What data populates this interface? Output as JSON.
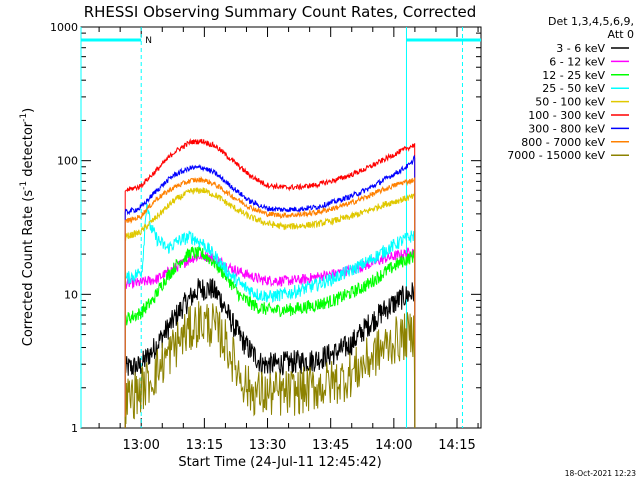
{
  "chart_data": {
    "type": "line",
    "title": "RHESSI Observing Summary Count Rates, Corrected",
    "xlabel": "Start Time (24-Jul-11 12:45:42)",
    "ylabel_main": "Corrected Count Rate (s",
    "ylabel_sup1": "-1",
    "ylabel_mid": " detector",
    "ylabel_sup2": "-1",
    "ylabel_end": ")",
    "yscale": "log",
    "ylim": [
      1,
      1000
    ],
    "xlim_minutes": [
      0,
      95
    ],
    "xtick_labels": [
      {
        "label": "13:00",
        "minutes": 14.3
      },
      {
        "label": "13:15",
        "minutes": 29.3
      },
      {
        "label": "13:30",
        "minutes": 44.3
      },
      {
        "label": "13:45",
        "minutes": 59.3
      },
      {
        "label": "14:00",
        "minutes": 74.3
      },
      {
        "label": "14:15",
        "minutes": 89.3
      }
    ],
    "ytick_labels": [
      {
        "label": "1",
        "value": 1
      },
      {
        "label": "10",
        "value": 10
      },
      {
        "label": "100",
        "value": 100
      },
      {
        "label": "1000",
        "value": 1000
      }
    ],
    "legend_header": [
      "Det 1,3,4,5,6,9,",
      "Att 0"
    ],
    "legend_position": "top-right-outside",
    "night_marker_label": "N",
    "footer_date": "18-Oct-2021 12:23",
    "markers": {
      "saa_bars": [
        {
          "start": 0,
          "end": 14.3
        },
        {
          "start": 77.3,
          "end": 95
        }
      ],
      "saa_level": 800,
      "night_lines": [
        14.3,
        90.6
      ],
      "data_edges": [
        0,
        77.3
      ],
      "color": "#00ffff"
    },
    "data_start": 10.5,
    "data_end": 79.3,
    "series": [
      {
        "name": "3 - 6 keV",
        "color": "#000000",
        "noise": 0.09,
        "step": 0.5,
        "points": [
          [
            10.5,
            2.8
          ],
          [
            14,
            2.9
          ],
          [
            17,
            3.8
          ],
          [
            20,
            5.2
          ],
          [
            24,
            8
          ],
          [
            28,
            11
          ],
          [
            31,
            11
          ],
          [
            33,
            9.5
          ],
          [
            36,
            6
          ],
          [
            39,
            4.2
          ],
          [
            43,
            3
          ],
          [
            46,
            3
          ],
          [
            50,
            3.1
          ],
          [
            55,
            3.2
          ],
          [
            60,
            3.6
          ],
          [
            64,
            4.2
          ],
          [
            68,
            5.8
          ],
          [
            72,
            7.6
          ],
          [
            76,
            9.3
          ],
          [
            79.3,
            10.5
          ]
        ]
      },
      {
        "name": "6 - 12 keV",
        "color": "#ff00ff",
        "noise": 0.04,
        "step": 0.5,
        "points": [
          [
            10.5,
            12
          ],
          [
            14,
            12.2
          ],
          [
            18,
            13
          ],
          [
            22,
            15.5
          ],
          [
            26,
            18.5
          ],
          [
            29,
            19.5
          ],
          [
            32,
            18.5
          ],
          [
            35,
            16
          ],
          [
            39,
            14.2
          ],
          [
            43,
            12.8
          ],
          [
            48,
            12.6
          ],
          [
            52,
            12.8
          ],
          [
            56,
            13.5
          ],
          [
            60,
            14.2
          ],
          [
            64,
            15.2
          ],
          [
            68,
            16.6
          ],
          [
            72,
            18.5
          ],
          [
            76,
            19.8
          ],
          [
            79.3,
            21
          ]
        ]
      },
      {
        "name": "12 - 25 keV",
        "color": "#00ff00",
        "noise": 0.05,
        "step": 0.5,
        "points": [
          [
            10.5,
            6.5
          ],
          [
            14,
            7.2
          ],
          [
            17,
            9
          ],
          [
            20,
            13
          ],
          [
            23,
            17
          ],
          [
            26,
            20.5
          ],
          [
            29,
            20
          ],
          [
            32,
            17
          ],
          [
            35,
            13
          ],
          [
            38,
            9.5
          ],
          [
            42,
            8
          ],
          [
            45,
            7.6
          ],
          [
            50,
            7.7
          ],
          [
            55,
            8.2
          ],
          [
            60,
            9
          ],
          [
            64,
            10.2
          ],
          [
            68,
            11.8
          ],
          [
            72,
            14.5
          ],
          [
            76,
            17.5
          ],
          [
            79.3,
            19.5
          ]
        ]
      },
      {
        "name": "25 - 50 keV",
        "color": "#00ffff",
        "noise": 0.05,
        "step": 0.5,
        "points": [
          [
            10.5,
            13
          ],
          [
            13,
            14
          ],
          [
            14.5,
            15
          ],
          [
            15.6,
            50
          ],
          [
            16.5,
            32
          ],
          [
            18,
            26
          ],
          [
            20.5,
            22
          ],
          [
            23,
            25
          ],
          [
            26,
            27
          ],
          [
            29,
            24
          ],
          [
            32,
            19
          ],
          [
            35,
            14.5
          ],
          [
            38,
            11.8
          ],
          [
            42,
            10
          ],
          [
            45,
            9.6
          ],
          [
            50,
            10.3
          ],
          [
            55,
            11.5
          ],
          [
            60,
            13.2
          ],
          [
            64,
            15
          ],
          [
            68,
            17.5
          ],
          [
            72,
            21
          ],
          [
            76,
            25
          ],
          [
            79.3,
            28
          ]
        ]
      },
      {
        "name": "50 - 100 keV",
        "color": "#e0c800",
        "noise": 0.025,
        "step": 0.5,
        "points": [
          [
            10.5,
            27
          ],
          [
            14,
            29
          ],
          [
            18,
            38
          ],
          [
            22,
            50
          ],
          [
            26,
            59
          ],
          [
            29,
            60
          ],
          [
            32,
            55
          ],
          [
            36,
            45
          ],
          [
            40,
            38
          ],
          [
            44,
            34
          ],
          [
            48,
            32
          ],
          [
            52,
            32.5
          ],
          [
            56,
            33.5
          ],
          [
            60,
            35.5
          ],
          [
            64,
            38
          ],
          [
            68,
            42
          ],
          [
            72,
            47
          ],
          [
            76,
            51
          ],
          [
            79.3,
            54
          ]
        ]
      },
      {
        "name": "100 - 300 keV",
        "color": "#ff0000",
        "noise": 0.02,
        "step": 0.5,
        "points": [
          [
            10.5,
            60
          ],
          [
            14,
            64
          ],
          [
            18,
            85
          ],
          [
            22,
            115
          ],
          [
            26,
            138
          ],
          [
            29,
            140
          ],
          [
            32,
            128
          ],
          [
            36,
            100
          ],
          [
            40,
            78
          ],
          [
            44,
            66
          ],
          [
            48,
            63
          ],
          [
            52,
            63.5
          ],
          [
            56,
            66
          ],
          [
            60,
            71
          ],
          [
            64,
            78
          ],
          [
            68,
            88
          ],
          [
            72,
            102
          ],
          [
            76,
            118
          ],
          [
            79.3,
            132
          ]
        ]
      },
      {
        "name": "300 - 800 keV",
        "color": "#0000ff",
        "noise": 0.02,
        "step": 0.5,
        "points": [
          [
            10.5,
            41
          ],
          [
            14,
            44
          ],
          [
            18,
            60
          ],
          [
            22,
            78
          ],
          [
            26,
            88
          ],
          [
            29,
            89
          ],
          [
            32,
            80
          ],
          [
            36,
            63
          ],
          [
            40,
            50
          ],
          [
            44,
            44
          ],
          [
            48,
            43
          ],
          [
            52,
            43.5
          ],
          [
            56,
            45
          ],
          [
            60,
            49
          ],
          [
            64,
            54
          ],
          [
            68,
            61
          ],
          [
            72,
            72
          ],
          [
            76,
            85
          ],
          [
            78.5,
            95
          ],
          [
            79.3,
            110
          ]
        ]
      },
      {
        "name": "800 - 7000 keV",
        "color": "#ff8000",
        "noise": 0.02,
        "step": 0.5,
        "points": [
          [
            10.5,
            35
          ],
          [
            14,
            38
          ],
          [
            18,
            52
          ],
          [
            22,
            63
          ],
          [
            26,
            71
          ],
          [
            29,
            72
          ],
          [
            32,
            66
          ],
          [
            36,
            54
          ],
          [
            40,
            45
          ],
          [
            44,
            40
          ],
          [
            48,
            39
          ],
          [
            52,
            39.5
          ],
          [
            56,
            41
          ],
          [
            60,
            44
          ],
          [
            64,
            48
          ],
          [
            68,
            54
          ],
          [
            72,
            61
          ],
          [
            76,
            68
          ],
          [
            79.3,
            72
          ]
        ]
      },
      {
        "name": "7000 - 15000 keV",
        "color": "#8c8200",
        "noise": 0.18,
        "step": 0.7,
        "points": [
          [
            10.5,
            1.6
          ],
          [
            14,
            1.9
          ],
          [
            17,
            2.4
          ],
          [
            20,
            3.3
          ],
          [
            24,
            4.8
          ],
          [
            28,
            6.2
          ],
          [
            31,
            6
          ],
          [
            34,
            4.6
          ],
          [
            37,
            2.8
          ],
          [
            40,
            1.9
          ],
          [
            43,
            1.8
          ],
          [
            48,
            1.8
          ],
          [
            53,
            1.9
          ],
          [
            58,
            2.1
          ],
          [
            62,
            2.3
          ],
          [
            66,
            2.8
          ],
          [
            70,
            3.6
          ],
          [
            74,
            4.4
          ],
          [
            79.3,
            5.2
          ]
        ]
      }
    ]
  }
}
